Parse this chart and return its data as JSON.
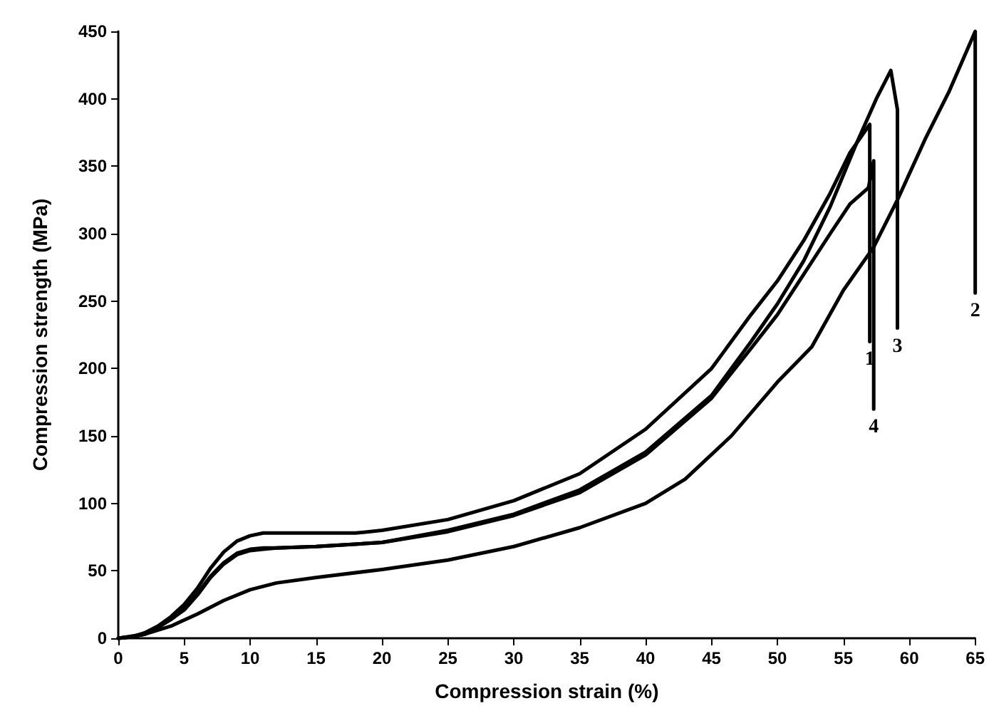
{
  "chart_data": {
    "type": "line",
    "xlabel": "Compression strain (%)",
    "ylabel": "Compression strength (MPa)",
    "xlim": [
      0,
      65
    ],
    "xticks": [
      0,
      5,
      10,
      15,
      20,
      25,
      30,
      35,
      40,
      45,
      50,
      55,
      60,
      65
    ],
    "ylim": [
      0,
      450
    ],
    "yticks": [
      0,
      50,
      100,
      150,
      200,
      250,
      300,
      350,
      400,
      450
    ],
    "grid": false,
    "legend": false,
    "marker": "none",
    "line_style": "solid",
    "series": [
      {
        "name": "1",
        "color": "#000000",
        "x": [
          0,
          1,
          2,
          3,
          4,
          5,
          6,
          7,
          8,
          9,
          10,
          11,
          12,
          15,
          18,
          20,
          25,
          30,
          35,
          40,
          45,
          48,
          50,
          52,
          54,
          55.5,
          57,
          57
        ],
        "values": [
          0,
          1,
          4,
          9,
          16,
          25,
          37,
          52,
          64,
          72,
          76,
          78,
          78,
          78,
          78,
          80,
          88,
          102,
          122,
          155,
          200,
          240,
          265,
          295,
          330,
          360,
          381,
          220
        ]
      },
      {
        "name": "2",
        "color": "#000000",
        "x": [
          0,
          2,
          4,
          6,
          8,
          10,
          12,
          15,
          20,
          25,
          30,
          35,
          40,
          43,
          46.5,
          50,
          52.6,
          55,
          57.3,
          59.1,
          61.2,
          63,
          65,
          65
        ],
        "values": [
          0,
          3,
          9,
          18,
          28,
          36,
          41,
          45,
          51,
          58,
          68,
          82,
          100,
          118,
          150,
          190,
          216,
          258,
          290,
          325,
          370,
          405,
          450,
          256
        ]
      },
      {
        "name": "3",
        "color": "#000000",
        "x": [
          0,
          1,
          2,
          3,
          4,
          5,
          6,
          7,
          8,
          9,
          10,
          11,
          12,
          15,
          20,
          25,
          30,
          35,
          40,
          45,
          48,
          50,
          52,
          54,
          56,
          57.5,
          58.6,
          59.1,
          59.1
        ],
        "values": [
          0,
          1,
          3,
          8,
          14,
          22,
          33,
          46,
          56,
          63,
          66,
          67,
          67,
          68,
          71,
          80,
          92,
          110,
          138,
          180,
          220,
          248,
          280,
          320,
          367,
          400,
          421,
          392,
          230
        ]
      },
      {
        "name": "4",
        "color": "#000000",
        "x": [
          0,
          1,
          2,
          3,
          4,
          5,
          6,
          7,
          8,
          9,
          10,
          11,
          12,
          15,
          20,
          25,
          30,
          35,
          40,
          45,
          48,
          50,
          52,
          54,
          55.5,
          56.9,
          57.3,
          57.3
        ],
        "values": [
          0,
          1,
          3,
          8,
          14,
          21,
          32,
          45,
          55,
          62,
          65,
          66,
          67,
          68,
          71,
          79,
          91,
          108,
          136,
          178,
          215,
          240,
          270,
          300,
          322,
          334,
          354,
          170
        ]
      }
    ]
  }
}
